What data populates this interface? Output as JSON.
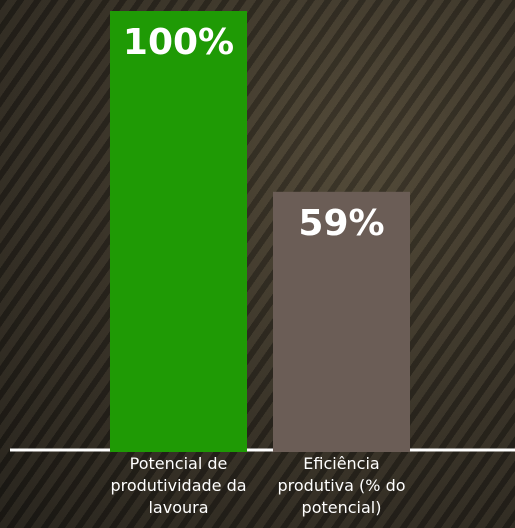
{
  "chart_data": {
    "type": "bar",
    "categories": [
      "Potencial de produtividade da lavoura",
      "Eficiência produtiva (% do potencial)"
    ],
    "values": [
      100,
      59
    ],
    "value_labels": [
      "100%",
      "59%"
    ],
    "colors": [
      "#1f9a05",
      "#6b5d56"
    ]
  }
}
